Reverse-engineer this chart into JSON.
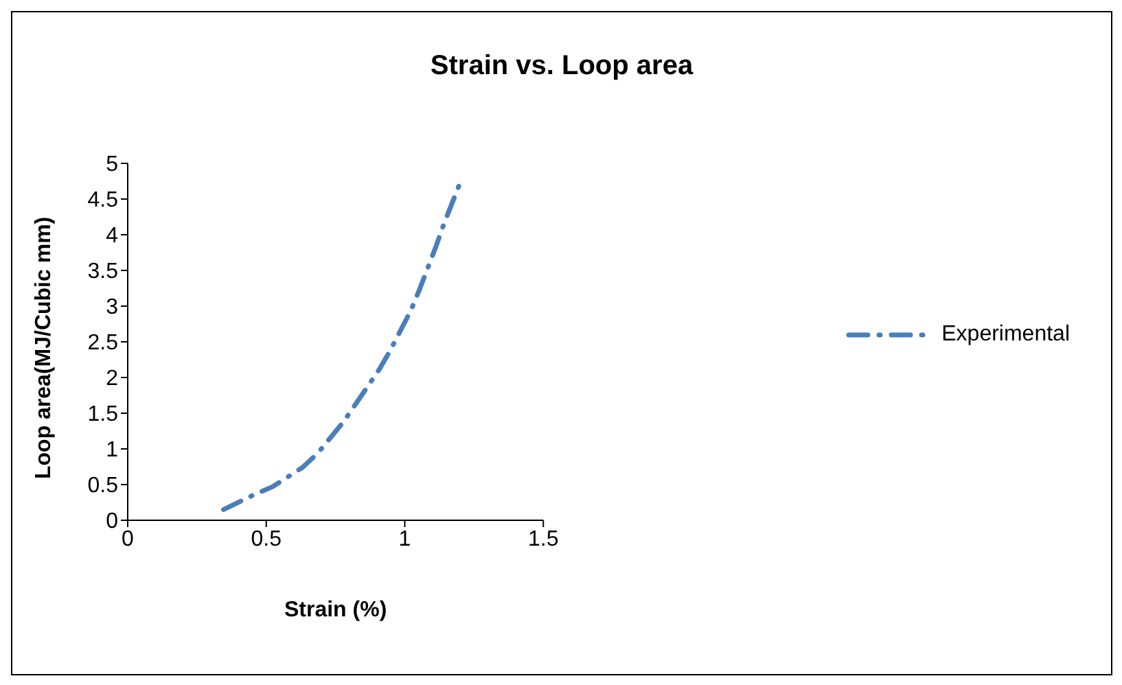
{
  "chart_data": {
    "type": "line",
    "title": "Strain vs. Loop area",
    "xlabel": "Strain (%)",
    "ylabel": "Loop area(MJ/Cubic  mm)",
    "series": [
      {
        "name": "Experimental",
        "color": "#4a7ebb",
        "x": [
          0.346,
          0.462,
          0.523,
          0.631,
          0.686,
          0.779,
          0.823,
          0.909,
          0.949,
          1.022,
          1.054,
          1.112,
          1.141,
          1.201
        ],
        "values": [
          0.15,
          0.37,
          0.47,
          0.74,
          0.94,
          1.38,
          1.63,
          2.12,
          2.39,
          2.94,
          3.24,
          3.83,
          4.15,
          4.74
        ]
      }
    ],
    "xlim": [
      0,
      1.5
    ],
    "xticks": [
      0,
      0.5,
      1,
      1.5
    ],
    "ylim": [
      0,
      5
    ],
    "yticks": [
      0,
      0.5,
      1,
      1.5,
      2,
      2.5,
      3,
      3.5,
      4,
      4.5,
      5
    ],
    "grid": false,
    "legend": "right",
    "marker": "none",
    "line_style": "dashdot"
  }
}
